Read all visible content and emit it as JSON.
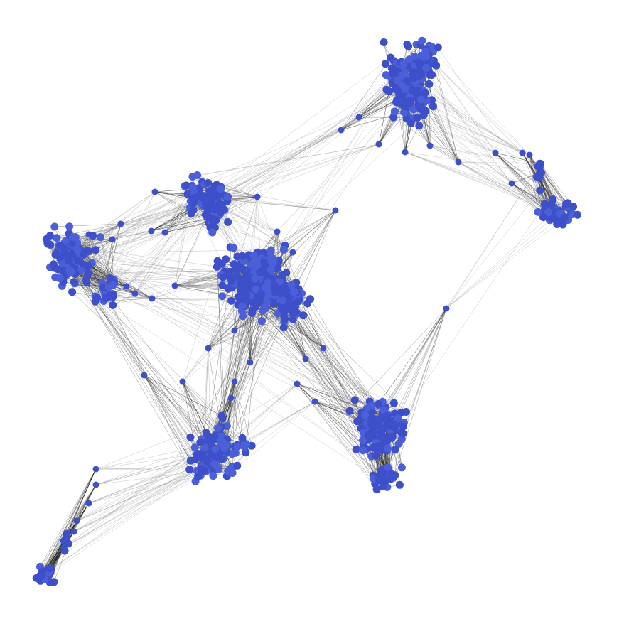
{
  "graph": {
    "type": "network",
    "labels": [],
    "colors": {
      "node": "#3d4fc9",
      "node_light": "#4a5fd8",
      "edge_dense": "#222222",
      "edge_sparse": "#888888",
      "background": "#ffffff"
    },
    "communities": [
      {
        "id": "top-right"
      },
      {
        "id": "right"
      },
      {
        "id": "upper-middle"
      },
      {
        "id": "left"
      },
      {
        "id": "center"
      },
      {
        "id": "lower-middle"
      },
      {
        "id": "lower-right"
      },
      {
        "id": "bottom-left"
      }
    ]
  }
}
